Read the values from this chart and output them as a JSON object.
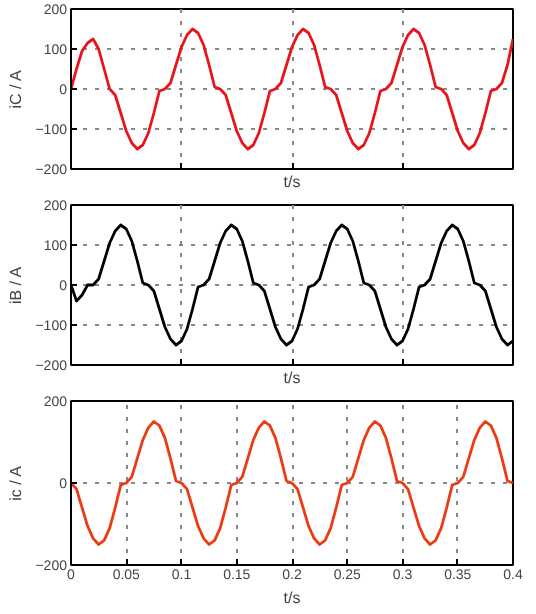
{
  "chart_data": [
    {
      "type": "line",
      "xlabel": "t/s",
      "ylabel": "iC / A",
      "xlim": [
        0,
        0.4
      ],
      "xticks": [
        0,
        0.1,
        0.2,
        0.3,
        0.4
      ],
      "ylim": [
        -200,
        200
      ],
      "yticks": [
        -200,
        -100,
        0,
        100,
        200
      ],
      "grid": true,
      "tick_labels": "y",
      "marker": "none",
      "line_style": "solid",
      "x": [
        0,
        0.005,
        0.01,
        0.015,
        0.02,
        0.025,
        0.03,
        0.035,
        0.04,
        0.045,
        0.05,
        0.055,
        0.06,
        0.065,
        0.07,
        0.075,
        0.08,
        0.085,
        0.09,
        0.095,
        0.1,
        0.105,
        0.11,
        0.115,
        0.12,
        0.125,
        0.13,
        0.135,
        0.14,
        0.145,
        0.15,
        0.155,
        0.16,
        0.165,
        0.17,
        0.175,
        0.18,
        0.185,
        0.19,
        0.195,
        0.2,
        0.205,
        0.21,
        0.215,
        0.22,
        0.225,
        0.23,
        0.235,
        0.24,
        0.245,
        0.25,
        0.255,
        0.26,
        0.265,
        0.27,
        0.275,
        0.28,
        0.285,
        0.29,
        0.295,
        0.3,
        0.305,
        0.31,
        0.315,
        0.32,
        0.325,
        0.33,
        0.335,
        0.34,
        0.345,
        0.35,
        0.355,
        0.36,
        0.365,
        0.37,
        0.375,
        0.38,
        0.385,
        0.39,
        0.395,
        0.4
      ],
      "series": [
        {
          "color": "#e8141c",
          "values": [
            0,
            50,
            95,
            115,
            125,
            100,
            50,
            0,
            -15,
            -60,
            -105,
            -135,
            -150,
            -140,
            -110,
            -60,
            -5,
            0,
            15,
            60,
            105,
            135,
            150,
            140,
            110,
            60,
            5,
            0,
            -15,
            -60,
            -105,
            -135,
            -150,
            -140,
            -110,
            -60,
            -5,
            0,
            15,
            60,
            105,
            135,
            150,
            140,
            110,
            60,
            5,
            0,
            -15,
            -60,
            -105,
            -135,
            -150,
            -140,
            -110,
            -60,
            -5,
            0,
            15,
            60,
            105,
            135,
            150,
            140,
            110,
            60,
            5,
            0,
            -15,
            -60,
            -105,
            -135,
            -150,
            -140,
            -110,
            -60,
            -5,
            0,
            15,
            60,
            125
          ]
        }
      ]
    },
    {
      "type": "line",
      "xlabel": "t/s",
      "ylabel": "iB / A",
      "xlim": [
        0,
        0.4
      ],
      "xticks": [
        0,
        0.1,
        0.2,
        0.3,
        0.4
      ],
      "ylim": [
        -200,
        200
      ],
      "yticks": [
        -200,
        -100,
        0,
        100,
        200
      ],
      "grid": true,
      "tick_labels": "y",
      "marker": "none",
      "line_style": "solid",
      "x": [
        0,
        0.005,
        0.01,
        0.015,
        0.02,
        0.025,
        0.03,
        0.035,
        0.04,
        0.045,
        0.05,
        0.055,
        0.06,
        0.065,
        0.07,
        0.075,
        0.08,
        0.085,
        0.09,
        0.095,
        0.1,
        0.105,
        0.11,
        0.115,
        0.12,
        0.125,
        0.13,
        0.135,
        0.14,
        0.145,
        0.15,
        0.155,
        0.16,
        0.165,
        0.17,
        0.175,
        0.18,
        0.185,
        0.19,
        0.195,
        0.2,
        0.205,
        0.21,
        0.215,
        0.22,
        0.225,
        0.23,
        0.235,
        0.24,
        0.245,
        0.25,
        0.255,
        0.26,
        0.265,
        0.27,
        0.275,
        0.28,
        0.285,
        0.29,
        0.295,
        0.3,
        0.305,
        0.31,
        0.315,
        0.32,
        0.325,
        0.33,
        0.335,
        0.34,
        0.345,
        0.35,
        0.355,
        0.36,
        0.365,
        0.37,
        0.375,
        0.38,
        0.385,
        0.39,
        0.395,
        0.4
      ],
      "series": [
        {
          "color": "#000000",
          "values": [
            0,
            -40,
            -25,
            0,
            0,
            15,
            60,
            105,
            135,
            150,
            140,
            110,
            60,
            5,
            0,
            -15,
            -60,
            -105,
            -135,
            -150,
            -140,
            -110,
            -60,
            -5,
            0,
            15,
            60,
            105,
            135,
            150,
            140,
            110,
            60,
            5,
            0,
            -15,
            -60,
            -105,
            -135,
            -150,
            -140,
            -110,
            -60,
            -5,
            0,
            15,
            60,
            105,
            135,
            150,
            140,
            110,
            60,
            5,
            0,
            -15,
            -60,
            -105,
            -135,
            -150,
            -140,
            -110,
            -60,
            -5,
            0,
            15,
            60,
            105,
            135,
            150,
            140,
            110,
            60,
            5,
            0,
            -15,
            -60,
            -105,
            -135,
            -150,
            -140
          ]
        }
      ]
    },
    {
      "type": "line",
      "xlabel": "t/s",
      "ylabel": "ic / A",
      "xlim": [
        0,
        0.4
      ],
      "xticks": [
        0,
        0.05,
        0.1,
        0.15,
        0.2,
        0.25,
        0.3,
        0.35,
        0.4
      ],
      "ylim": [
        -200,
        200
      ],
      "yticks": [
        -200,
        0,
        200
      ],
      "grid": true,
      "marker": "none",
      "line_style": "solid",
      "x": [
        0,
        0.005,
        0.01,
        0.015,
        0.02,
        0.025,
        0.03,
        0.035,
        0.04,
        0.045,
        0.05,
        0.055,
        0.06,
        0.065,
        0.07,
        0.075,
        0.08,
        0.085,
        0.09,
        0.095,
        0.1,
        0.105,
        0.11,
        0.115,
        0.12,
        0.125,
        0.13,
        0.135,
        0.14,
        0.145,
        0.15,
        0.155,
        0.16,
        0.165,
        0.17,
        0.175,
        0.18,
        0.185,
        0.19,
        0.195,
        0.2,
        0.205,
        0.21,
        0.215,
        0.22,
        0.225,
        0.23,
        0.235,
        0.24,
        0.245,
        0.25,
        0.255,
        0.26,
        0.265,
        0.27,
        0.275,
        0.28,
        0.285,
        0.29,
        0.295,
        0.3,
        0.305,
        0.31,
        0.315,
        0.32,
        0.325,
        0.33,
        0.335,
        0.34,
        0.345,
        0.35,
        0.355,
        0.36,
        0.365,
        0.37,
        0.375,
        0.38,
        0.385,
        0.39,
        0.395,
        0.4
      ],
      "series": [
        {
          "color": "#ec3a12",
          "values": [
            0,
            -15,
            -60,
            -105,
            -135,
            -150,
            -140,
            -110,
            -60,
            -5,
            0,
            15,
            60,
            105,
            135,
            150,
            140,
            110,
            60,
            5,
            0,
            -15,
            -60,
            -105,
            -135,
            -150,
            -140,
            -110,
            -60,
            -5,
            0,
            15,
            60,
            105,
            135,
            150,
            140,
            110,
            60,
            5,
            0,
            -15,
            -60,
            -105,
            -135,
            -150,
            -140,
            -110,
            -60,
            -5,
            0,
            15,
            60,
            105,
            135,
            150,
            140,
            110,
            60,
            5,
            0,
            -15,
            -60,
            -105,
            -135,
            -150,
            -140,
            -110,
            -60,
            -5,
            0,
            15,
            60,
            105,
            135,
            150,
            140,
            110,
            60,
            5,
            0
          ]
        }
      ]
    }
  ]
}
